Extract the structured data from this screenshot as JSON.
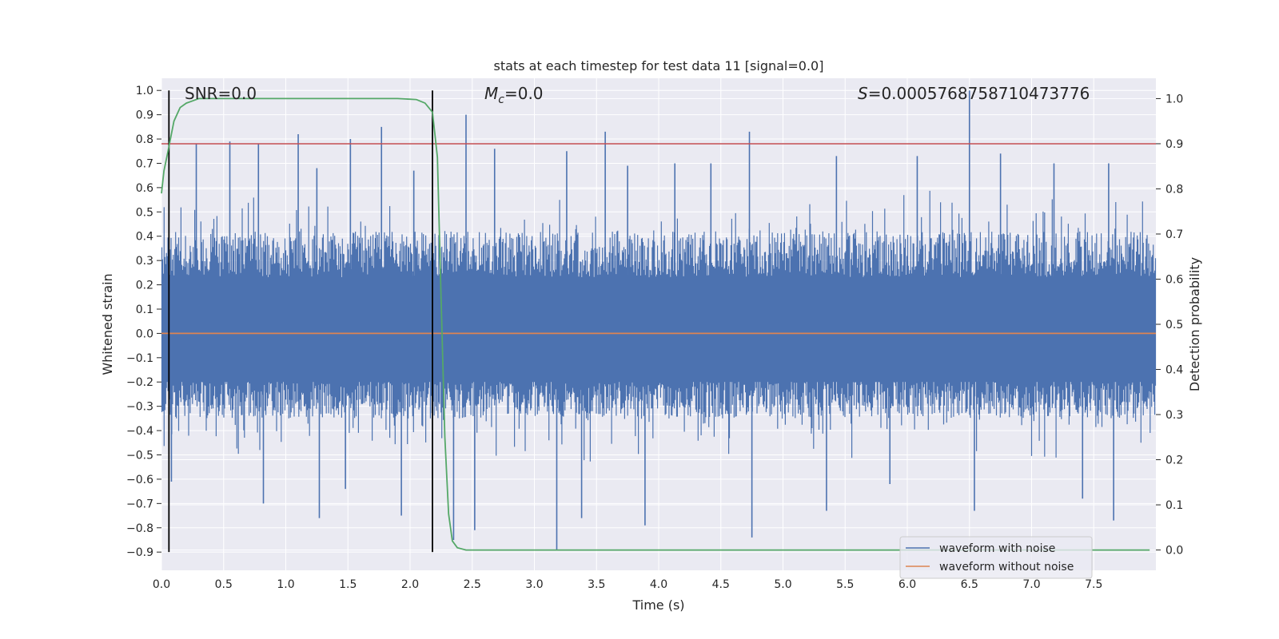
{
  "chart_data": {
    "type": "line",
    "title": "stats at each timestep for test data 11 [signal=0.0]",
    "xlabel": "Time (s)",
    "ylabel": "Whitened strain",
    "y2label": "Detection probability",
    "xlim": [
      0.0,
      8.0
    ],
    "ylim": [
      -0.975,
      1.05
    ],
    "y2lim": [
      -0.045,
      1.045
    ],
    "xticks": [
      "0.0",
      "0.5",
      "1.0",
      "1.5",
      "2.0",
      "2.5",
      "3.0",
      "3.5",
      "4.0",
      "4.5",
      "5.0",
      "5.5",
      "6.0",
      "6.5",
      "7.0",
      "7.5"
    ],
    "xtick_values": [
      0.0,
      0.5,
      1.0,
      1.5,
      2.0,
      2.5,
      3.0,
      3.5,
      4.0,
      4.5,
      5.0,
      5.5,
      6.0,
      6.5,
      7.0,
      7.5
    ],
    "yticks": [
      "1.0",
      "0.9",
      "0.8",
      "0.7",
      "0.6",
      "0.5",
      "0.4",
      "0.3",
      "0.2",
      "0.1",
      "0.0",
      "-0.1",
      "-0.2",
      "-0.3",
      "-0.4",
      "-0.5",
      "-0.6",
      "-0.7",
      "-0.8",
      "-0.9"
    ],
    "ytick_values": [
      1.0,
      0.9,
      0.8,
      0.7,
      0.6,
      0.5,
      0.4,
      0.3,
      0.2,
      0.1,
      0.0,
      -0.1,
      -0.2,
      -0.3,
      -0.4,
      -0.5,
      -0.6,
      -0.7,
      -0.8,
      -0.9
    ],
    "y2ticks": [
      "1.0",
      "0.9",
      "0.8",
      "0.7",
      "0.6",
      "0.5",
      "0.4",
      "0.3",
      "0.2",
      "0.1",
      "0.0"
    ],
    "y2tick_values": [
      1.0,
      0.9,
      0.8,
      0.7,
      0.6,
      0.5,
      0.4,
      0.3,
      0.2,
      0.1,
      0.0
    ],
    "annotations": {
      "snr": "SNR=0.0",
      "mc_symbol": "M",
      "mc_sub": "c",
      "mc_value": "=0.0",
      "s_symbol": "S",
      "s_value": "=0.0005768758710473776"
    },
    "series": [
      {
        "name": "waveform with noise",
        "color": "#4c72b0",
        "kind": "noise",
        "typical_range": [
          -0.35,
          0.42
        ],
        "spikes": [
          {
            "x": 0.28,
            "y": 0.78
          },
          {
            "x": 0.55,
            "y": 0.79
          },
          {
            "x": 0.78,
            "y": 0.78
          },
          {
            "x": 1.1,
            "y": 0.82
          },
          {
            "x": 1.25,
            "y": 0.68
          },
          {
            "x": 1.52,
            "y": 0.8
          },
          {
            "x": 1.77,
            "y": 0.85
          },
          {
            "x": 2.03,
            "y": 0.67
          },
          {
            "x": 2.45,
            "y": 0.9
          },
          {
            "x": 2.68,
            "y": 0.76
          },
          {
            "x": 3.26,
            "y": 0.75
          },
          {
            "x": 3.57,
            "y": 0.83
          },
          {
            "x": 3.75,
            "y": 0.69
          },
          {
            "x": 4.13,
            "y": 0.7
          },
          {
            "x": 4.42,
            "y": 0.7
          },
          {
            "x": 4.73,
            "y": 0.83
          },
          {
            "x": 5.43,
            "y": 0.73
          },
          {
            "x": 6.08,
            "y": 0.73
          },
          {
            "x": 6.5,
            "y": 1.0
          },
          {
            "x": 6.75,
            "y": 0.74
          },
          {
            "x": 7.18,
            "y": 0.7
          },
          {
            "x": 7.62,
            "y": 0.7
          },
          {
            "x": 0.08,
            "y": -0.61
          },
          {
            "x": 0.82,
            "y": -0.7
          },
          {
            "x": 1.27,
            "y": -0.76
          },
          {
            "x": 1.48,
            "y": -0.64
          },
          {
            "x": 1.93,
            "y": -0.75
          },
          {
            "x": 2.35,
            "y": -0.85
          },
          {
            "x": 2.52,
            "y": -0.81
          },
          {
            "x": 3.18,
            "y": -0.89
          },
          {
            "x": 3.38,
            "y": -0.76
          },
          {
            "x": 3.89,
            "y": -0.79
          },
          {
            "x": 4.75,
            "y": -0.84
          },
          {
            "x": 5.35,
            "y": -0.73
          },
          {
            "x": 5.86,
            "y": -0.62
          },
          {
            "x": 6.54,
            "y": -0.73
          },
          {
            "x": 7.41,
            "y": -0.68
          },
          {
            "x": 7.66,
            "y": -0.77
          }
        ]
      },
      {
        "name": "waveform without noise",
        "color": "#dd8452",
        "x": [
          0.0,
          8.0
        ],
        "y": [
          0.0,
          0.0
        ]
      },
      {
        "name": "detection probability",
        "color": "#55a868",
        "axis": "right",
        "x": [
          0.0,
          0.02,
          0.05,
          0.1,
          0.15,
          0.2,
          0.25,
          0.3,
          0.4,
          0.6,
          1.0,
          1.5,
          1.9,
          2.05,
          2.12,
          2.18,
          2.22,
          2.25,
          2.28,
          2.31,
          2.34,
          2.38,
          2.45,
          3.0,
          5.0,
          7.95
        ],
        "y": [
          0.79,
          0.84,
          0.88,
          0.95,
          0.98,
          0.99,
          0.995,
          1.0,
          1.0,
          1.0,
          1.0,
          1.0,
          1.0,
          0.998,
          0.99,
          0.97,
          0.87,
          0.55,
          0.25,
          0.08,
          0.02,
          0.005,
          0.0,
          0.0,
          0.0,
          0.0
        ]
      }
    ],
    "threshold_line": {
      "axis": "right",
      "y": 0.9,
      "color": "#c44e52"
    },
    "vertical_lines": [
      {
        "x": 0.06,
        "ymin": -0.9,
        "ymax": 1.0,
        "color": "#000000"
      },
      {
        "x": 2.18,
        "ymin": -0.9,
        "ymax": 1.0,
        "color": "#000000"
      }
    ],
    "legend_position": "lower-right",
    "grid": true,
    "colors": {
      "axes_bg": "#eaeaf2",
      "grid": "#ffffff"
    }
  }
}
